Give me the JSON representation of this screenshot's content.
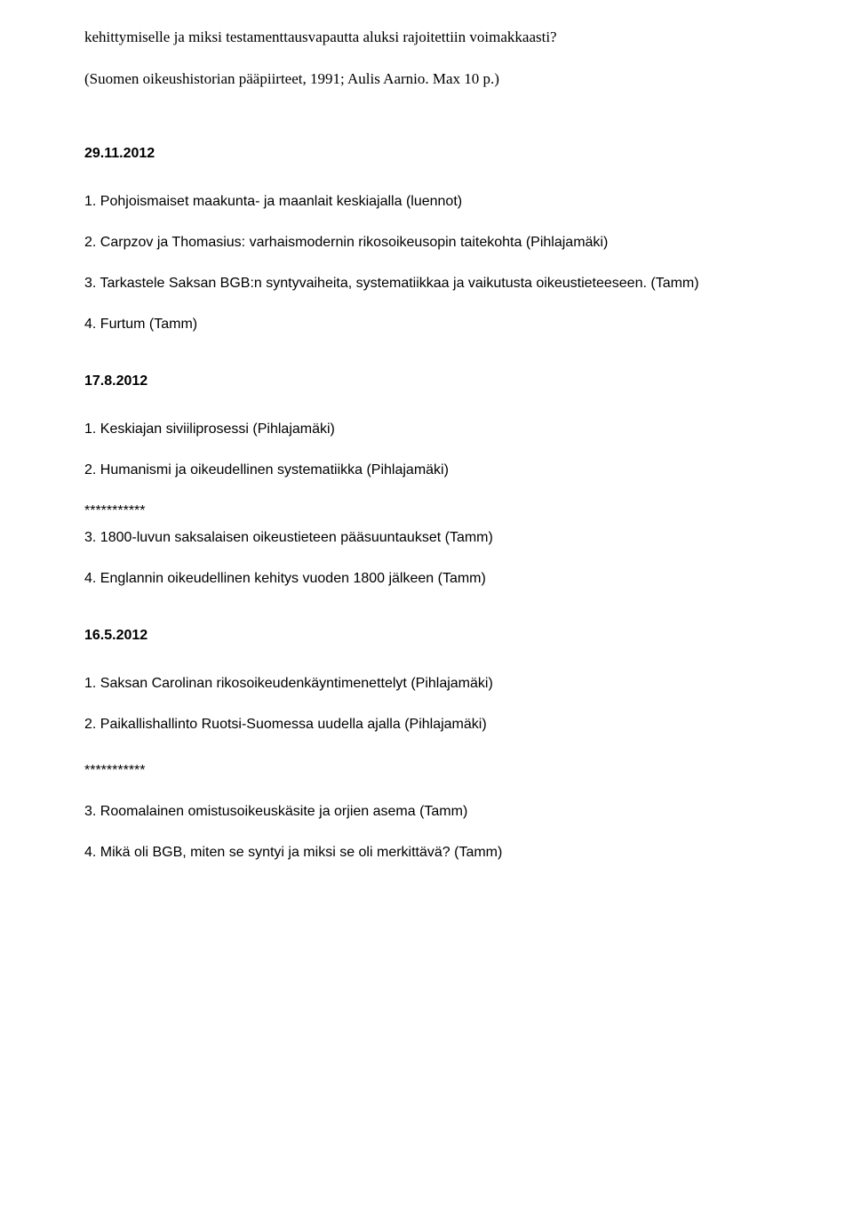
{
  "intro": {
    "p1": "kehittymiselle ja miksi testamenttausvapautta aluksi rajoitettiin voimakkaasti?",
    "p2": "(Suomen oikeushistorian pääpiirteet, 1991; Aulis Aarnio. Max 10 p.)"
  },
  "sections": [
    {
      "date": "29.11.2012",
      "items": [
        "1. Pohjoismaiset maakunta- ja maanlait keskiajalla (luennot)",
        "2. Carpzov ja Thomasius: varhaismodernin rikosoikeusopin taitekohta (Pihlajamäki)",
        "3. Tarkastele Saksan BGB:n syntyvaiheita, systematiikkaa ja vaikutusta oikeustieteeseen. (Tamm)",
        "4. Furtum (Tamm)"
      ]
    },
    {
      "date": "17.8.2012",
      "items_before": [
        "1. Keskiajan siviiliprosessi (Pihlajamäki)",
        "2. Humanismi ja oikeudellinen systematiikka (Pihlajamäki)"
      ],
      "stars": "***********",
      "items_after": [
        "3. 1800-luvun saksalaisen oikeustieteen pääsuuntaukset (Tamm)",
        "4. Englannin oikeudellinen kehitys vuoden 1800 jälkeen (Tamm)"
      ]
    },
    {
      "date": "16.5.2012",
      "items_before": [
        "1. Saksan Carolinan rikosoikeudenkäyntimenettelyt (Pihlajamäki)",
        "2. Paikallishallinto Ruotsi-Suomessa uudella ajalla (Pihlajamäki)"
      ],
      "stars": "***********",
      "items_after": [
        "3. Roomalainen omistusoikeuskäsite ja orjien asema (Tamm)",
        "4. Mikä oli BGB, miten se syntyi ja miksi se oli merkittävä? (Tamm)"
      ]
    }
  ]
}
